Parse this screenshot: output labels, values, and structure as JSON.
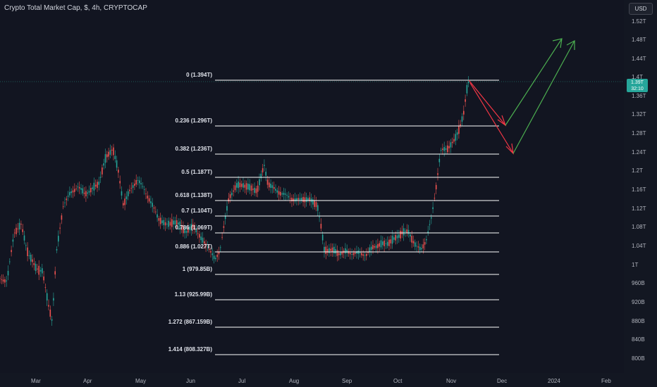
{
  "title": "Crypto Total Market Cap, $, 4h, CRYPTOCAP",
  "currency_button": "USD",
  "current_price": {
    "value": "1.39T",
    "countdown": "32:10"
  },
  "price_ticks": [
    "1.52T",
    "1.48T",
    "1.44T",
    "1.4T",
    "1.36T",
    "1.32T",
    "1.28T",
    "1.24T",
    "1.2T",
    "1.16T",
    "1.12T",
    "1.08T",
    "1.04T",
    "1T",
    "960B",
    "920B",
    "880B",
    "840B",
    "800B"
  ],
  "time_ticks": [
    "Mar",
    "Apr",
    "May",
    "Jun",
    "Jul",
    "Aug",
    "Sep",
    "Oct",
    "Nov",
    "Dec",
    "2024",
    "Feb"
  ],
  "fib_levels": [
    "0 (1.394T)",
    "0.236 (1.296T)",
    "0.382 (1.236T)",
    "0.5 (1.187T)",
    "0.618 (1.138T)",
    "0.7 (1.104T)",
    "0.786 (1.069T)",
    "0.886 (1.027T)",
    "1 (979.85B)",
    "1.13 (925.99B)",
    "1.272 (867.159B)",
    "1.414 (808.327B)"
  ],
  "colors": {
    "up": "#26a69a",
    "down": "#ef5350",
    "fib_line": "#ffffff",
    "projection_up": "#4caf50",
    "projection_down": "#f23645",
    "background": "#131722"
  }
}
